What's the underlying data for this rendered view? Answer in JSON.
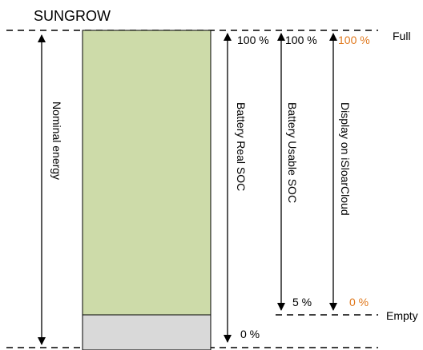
{
  "brand": "SUNGROW",
  "levels": {
    "full": "Full",
    "empty": "Empty"
  },
  "nominal_label": "Nominal energy",
  "columns": [
    {
      "label": "Battery Real SOC",
      "top": "100 %",
      "bottom": "0 %"
    },
    {
      "label": "Battery Usable SOC",
      "top": "100 %",
      "bottom": "5 %"
    },
    {
      "label": "Display on iSloarCloud",
      "top": "100 %",
      "bottom": "0 %"
    }
  ],
  "colors": {
    "usable_fill": "#cddba9",
    "reserve_fill": "#d9d9d9",
    "orange": "#e0781c",
    "line": "#000000"
  }
}
